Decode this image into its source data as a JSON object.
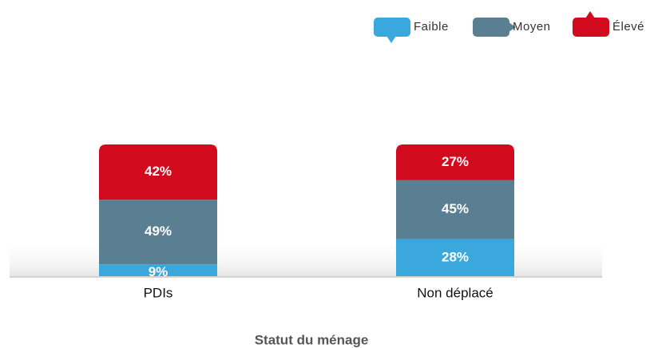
{
  "chart_data": {
    "type": "stacked_bar",
    "x_label": "Statut du ménage",
    "categories": [
      "PDIs",
      "Non déplacé"
    ],
    "series": [
      {
        "name": "Faible",
        "color": "#3aa8dc",
        "values": [
          9,
          28
        ],
        "value_labels": [
          "9%",
          "28%"
        ]
      },
      {
        "name": "Moyen",
        "color": "#5a7f92",
        "values": [
          49,
          45
        ],
        "value_labels": [
          "49%",
          "45%"
        ]
      },
      {
        "name": "Élevé",
        "color": "#d20a1e",
        "values": [
          42,
          27
        ],
        "value_labels": [
          "42%",
          "27%"
        ]
      }
    ],
    "ylim": [
      0,
      100
    ],
    "legend": "top-right"
  }
}
